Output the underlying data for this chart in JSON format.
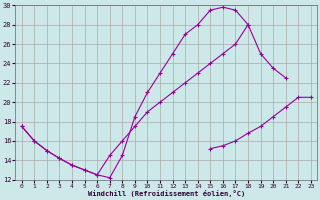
{
  "xlabel": "Windchill (Refroidissement éolien,°C)",
  "bg_color": "#cce8e8",
  "line_color": "#990099",
  "grid_color": "#aaaaaa",
  "xlim": [
    -0.5,
    23.5
  ],
  "ylim": [
    12,
    30
  ],
  "xticks": [
    0,
    1,
    2,
    3,
    4,
    5,
    6,
    7,
    8,
    9,
    10,
    11,
    12,
    13,
    14,
    15,
    16,
    17,
    18,
    19,
    20,
    21,
    22,
    23
  ],
  "yticks": [
    12,
    14,
    16,
    18,
    20,
    22,
    24,
    26,
    28,
    30
  ],
  "line1_x": [
    0,
    1,
    2,
    3,
    4,
    5,
    6,
    7,
    8,
    9,
    10,
    11,
    12,
    13,
    14,
    15,
    16,
    17,
    18,
    19,
    20,
    21,
    22
  ],
  "line1_y": [
    17.5,
    16.0,
    15.0,
    14.2,
    13.5,
    13.0,
    12.5,
    12.2,
    14.5,
    18.5,
    21.0,
    23.0,
    25.0,
    27.0,
    28.0,
    29.5,
    29.8,
    29.5,
    28.0,
    null,
    null,
    null,
    null
  ],
  "line2_x": [
    0,
    1,
    2,
    3,
    4,
    5,
    6,
    7,
    8,
    9,
    10,
    11,
    12,
    13,
    14,
    15,
    16,
    17,
    18,
    19,
    20,
    21,
    22
  ],
  "line2_y": [
    17.5,
    16.0,
    15.0,
    14.2,
    13.5,
    13.0,
    12.5,
    14.5,
    16.0,
    17.5,
    19.0,
    20.0,
    21.0,
    22.0,
    23.0,
    24.0,
    25.0,
    26.0,
    28.0,
    25.0,
    23.5,
    22.5,
    null
  ],
  "line3_x": [
    0,
    1,
    2,
    3,
    4,
    5,
    6,
    7,
    8,
    9,
    10,
    11,
    12,
    13,
    14,
    15,
    16,
    17,
    18,
    19,
    20,
    21,
    22,
    23
  ],
  "line3_y": [
    null,
    null,
    null,
    null,
    null,
    null,
    null,
    null,
    null,
    null,
    null,
    null,
    null,
    null,
    null,
    15.2,
    15.5,
    16.0,
    16.8,
    17.5,
    18.5,
    19.5,
    20.5,
    20.5
  ]
}
